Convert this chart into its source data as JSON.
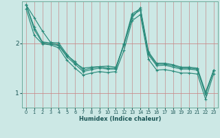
{
  "title": "",
  "xlabel": "Humidex (Indice chaleur)",
  "bg_color": "#cce8e5",
  "grid_color": "#b8d8d5",
  "line_color": "#2a8a7a",
  "xmin": -0.5,
  "xmax": 23.5,
  "ymin": 0.7,
  "ymax": 2.85,
  "yticks": [
    1,
    2
  ],
  "xticks": [
    0,
    1,
    2,
    3,
    4,
    5,
    6,
    7,
    8,
    9,
    10,
    11,
    12,
    13,
    14,
    15,
    16,
    17,
    18,
    19,
    20,
    21,
    22,
    23
  ],
  "series": [
    [
      2.78,
      2.52,
      2.25,
      2.02,
      2.01,
      1.78,
      1.6,
      1.5,
      1.52,
      1.53,
      1.54,
      1.52,
      1.97,
      2.52,
      2.72,
      1.83,
      1.6,
      1.6,
      1.57,
      1.52,
      1.52,
      1.5,
      1.01,
      1.46
    ],
    [
      2.78,
      2.33,
      2.03,
      2.01,
      1.97,
      1.76,
      1.63,
      1.46,
      1.5,
      1.53,
      1.5,
      1.5,
      2.0,
      2.6,
      2.7,
      1.8,
      1.58,
      1.58,
      1.55,
      1.5,
      1.5,
      1.48,
      0.99,
      1.46
    ],
    [
      2.78,
      2.28,
      2.01,
      1.99,
      1.95,
      1.73,
      1.58,
      1.43,
      1.47,
      1.5,
      1.48,
      1.48,
      1.98,
      2.57,
      2.67,
      1.77,
      1.55,
      1.56,
      1.52,
      1.48,
      1.48,
      1.46,
      0.97,
      1.45
    ],
    [
      2.7,
      2.16,
      1.99,
      1.97,
      1.91,
      1.66,
      1.5,
      1.36,
      1.4,
      1.43,
      1.41,
      1.43,
      1.86,
      2.46,
      2.58,
      1.68,
      1.46,
      1.47,
      1.44,
      1.4,
      1.4,
      1.38,
      0.87,
      1.39
    ]
  ]
}
